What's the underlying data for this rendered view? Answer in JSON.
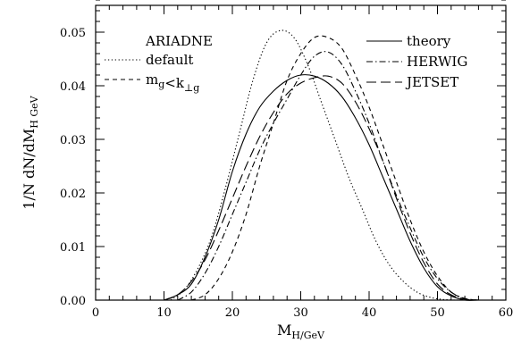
{
  "chart_data": {
    "type": "line",
    "xlabel": "M_H/GeV",
    "ylabel": "1/N dN/dM_H GeV",
    "xlim": [
      0,
      60
    ],
    "ylim": [
      0,
      0.055
    ],
    "x_ticks": [
      0,
      10,
      20,
      30,
      40,
      50,
      60
    ],
    "y_ticks": [
      0.0,
      0.01,
      0.02,
      0.03,
      0.04,
      0.05
    ],
    "x_tick_labels": [
      "0",
      "10",
      "20",
      "30",
      "40",
      "50",
      "60"
    ],
    "y_tick_labels": [
      "0.00",
      "0.01",
      "0.02",
      "0.03",
      "0.04",
      "0.05"
    ],
    "legend_left": {
      "heading": "ARIADNE",
      "entries": [
        {
          "label": "default",
          "series": "default"
        },
        {
          "label": "m_g<k_⊥g",
          "series": "mg_kperp"
        }
      ]
    },
    "legend_right": {
      "entries": [
        {
          "label": "theory",
          "series": "theory"
        },
        {
          "label": "HERWIG",
          "series": "herwig"
        },
        {
          "label": "JETSET",
          "series": "jetset"
        }
      ]
    },
    "series": [
      {
        "id": "theory",
        "style": "solid",
        "x": [
          10,
          12,
          14,
          16,
          18,
          20,
          22,
          24,
          26,
          28,
          30,
          32,
          34,
          36,
          38,
          40,
          42,
          44,
          46,
          48,
          50,
          52,
          54,
          56
        ],
        "y": [
          0.0,
          0.001,
          0.003,
          0.008,
          0.015,
          0.024,
          0.031,
          0.036,
          0.039,
          0.041,
          0.042,
          0.0418,
          0.0405,
          0.038,
          0.034,
          0.029,
          0.023,
          0.017,
          0.011,
          0.006,
          0.0025,
          0.0008,
          0.0,
          0.0
        ]
      },
      {
        "id": "default",
        "style": "dotted",
        "x": [
          11,
          13,
          15,
          17,
          19,
          21,
          23,
          25,
          27,
          29,
          31,
          33,
          35,
          37,
          39,
          41,
          43,
          45,
          47,
          49,
          51,
          53
        ],
        "y": [
          0.0,
          0.002,
          0.006,
          0.012,
          0.021,
          0.031,
          0.041,
          0.048,
          0.0503,
          0.049,
          0.044,
          0.037,
          0.03,
          0.023,
          0.017,
          0.011,
          0.0065,
          0.0035,
          0.0015,
          0.0005,
          0.0001,
          0.0
        ]
      },
      {
        "id": "mg_kperp",
        "style": "dashed-short",
        "x": [
          14,
          16,
          18,
          20,
          22,
          24,
          26,
          28,
          30,
          32,
          34,
          36,
          38,
          40,
          42,
          44,
          46,
          48,
          50,
          52,
          54,
          56
        ],
        "y": [
          0.0,
          0.001,
          0.004,
          0.009,
          0.016,
          0.025,
          0.033,
          0.041,
          0.046,
          0.049,
          0.049,
          0.047,
          0.042,
          0.036,
          0.029,
          0.022,
          0.015,
          0.009,
          0.0045,
          0.0015,
          0.0003,
          0.0
        ]
      },
      {
        "id": "herwig",
        "style": "dash-dot",
        "x": [
          12,
          14,
          16,
          18,
          20,
          22,
          24,
          26,
          28,
          30,
          32,
          34,
          36,
          38,
          40,
          42,
          44,
          46,
          48,
          50,
          52,
          54,
          56
        ],
        "y": [
          0.0,
          0.0015,
          0.005,
          0.01,
          0.016,
          0.022,
          0.028,
          0.033,
          0.0375,
          0.042,
          0.0455,
          0.0463,
          0.044,
          0.039,
          0.033,
          0.026,
          0.0195,
          0.0135,
          0.008,
          0.004,
          0.0015,
          0.0003,
          0.0
        ]
      },
      {
        "id": "jetset",
        "style": "dashed-long",
        "x": [
          10,
          12,
          14,
          16,
          18,
          20,
          22,
          24,
          26,
          28,
          30,
          32,
          34,
          36,
          38,
          40,
          42,
          44,
          46,
          48,
          50,
          52,
          54,
          56
        ],
        "y": [
          0.0,
          0.001,
          0.0035,
          0.0075,
          0.013,
          0.019,
          0.025,
          0.0305,
          0.035,
          0.0385,
          0.0405,
          0.0415,
          0.0418,
          0.0405,
          0.037,
          0.032,
          0.026,
          0.019,
          0.0125,
          0.007,
          0.003,
          0.001,
          0.0002,
          0.0
        ]
      }
    ]
  }
}
